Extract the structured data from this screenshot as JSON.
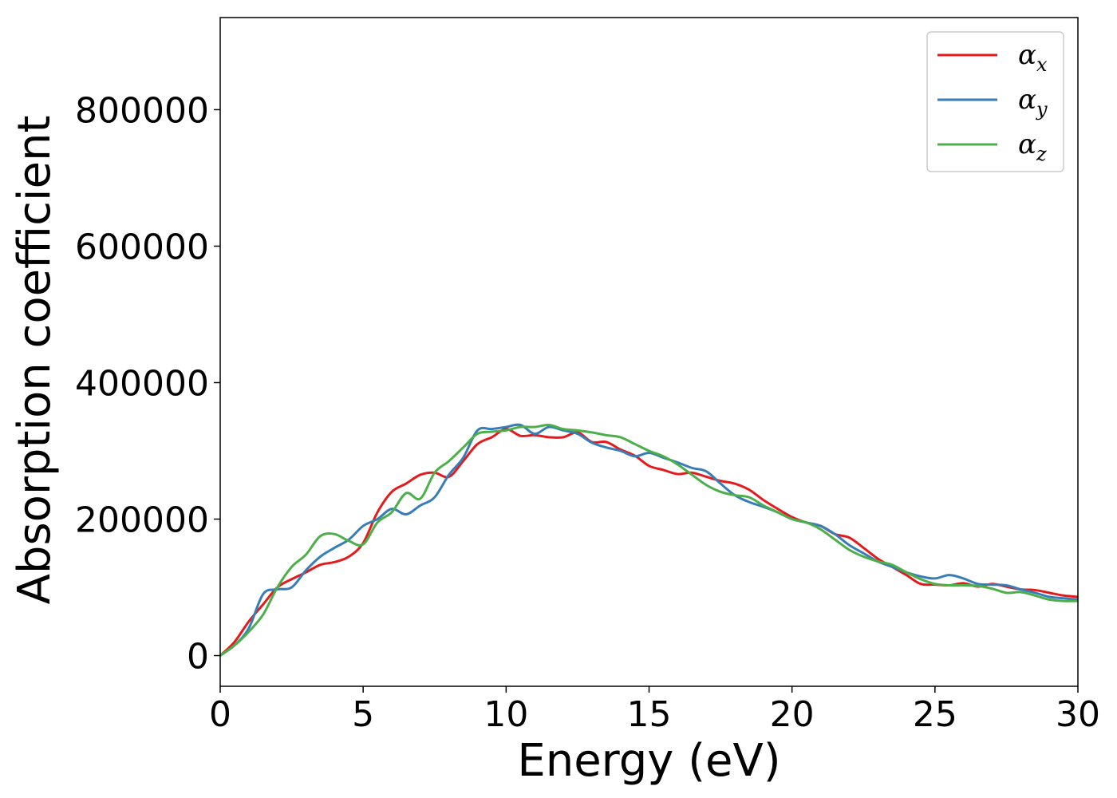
{
  "chart_data": {
    "type": "line",
    "xlabel": "Energy (eV)",
    "ylabel": "Absorption coefficient",
    "xlim": [
      0,
      30
    ],
    "ylim": [
      -45000,
      935000
    ],
    "xticks": [
      0,
      5,
      10,
      15,
      20,
      25,
      30
    ],
    "yticks": [
      0,
      200000,
      400000,
      600000,
      800000
    ],
    "grid": false,
    "legend_position": "top-right",
    "series": [
      {
        "name": "αx",
        "symbol": "α",
        "subscript": "x",
        "color": "#e41a1c",
        "x": [
          0,
          0.5,
          1.0,
          1.5,
          2.0,
          2.5,
          3.0,
          3.5,
          4.0,
          4.5,
          5.0,
          5.5,
          6.0,
          6.5,
          7.0,
          7.5,
          8.0,
          8.5,
          9.0,
          9.5,
          10.0,
          10.5,
          11.0,
          11.5,
          12.0,
          12.5,
          13.0,
          13.5,
          14.0,
          14.5,
          15.0,
          15.5,
          16.0,
          16.5,
          17.0,
          17.5,
          18.0,
          18.5,
          19.0,
          19.5,
          20.0,
          20.5,
          21.0,
          21.5,
          22.0,
          22.5,
          23.0,
          23.5,
          24.0,
          24.5,
          25.0,
          25.5,
          26.0,
          26.5,
          27.0,
          27.5,
          28.0,
          28.5,
          29.0,
          29.5,
          30.0
        ],
        "y": [
          0,
          20000,
          50000,
          75000,
          100000,
          112000,
          122000,
          133000,
          137000,
          145000,
          165000,
          210000,
          240000,
          252000,
          265000,
          268000,
          262000,
          285000,
          310000,
          320000,
          332000,
          322000,
          323000,
          320000,
          320000,
          327000,
          313000,
          313000,
          302000,
          293000,
          278000,
          272000,
          266000,
          268000,
          262000,
          256000,
          252000,
          243000,
          228000,
          215000,
          203000,
          195000,
          190000,
          178000,
          173000,
          158000,
          142000,
          130000,
          118000,
          105000,
          104000,
          103000,
          106000,
          101000,
          105000,
          101000,
          97000,
          96000,
          92000,
          88000,
          86000
        ]
      },
      {
        "name": "αy",
        "symbol": "α",
        "subscript": "y",
        "color": "#377eb8",
        "x": [
          0,
          0.5,
          1.0,
          1.5,
          2.0,
          2.5,
          3.0,
          3.5,
          4.0,
          4.5,
          5.0,
          5.5,
          6.0,
          6.5,
          7.0,
          7.5,
          8.0,
          8.5,
          9.0,
          9.5,
          10.0,
          10.5,
          11.0,
          11.5,
          12.0,
          12.5,
          13.0,
          13.5,
          14.0,
          14.5,
          15.0,
          15.5,
          16.0,
          16.5,
          17.0,
          17.5,
          18.0,
          18.5,
          19.0,
          19.5,
          20.0,
          20.5,
          21.0,
          21.5,
          22.0,
          22.5,
          23.0,
          23.5,
          24.0,
          24.5,
          25.0,
          25.5,
          26.0,
          26.5,
          27.0,
          27.5,
          28.0,
          28.5,
          29.0,
          29.5,
          30.0
        ],
        "y": [
          0,
          15000,
          40000,
          90000,
          97000,
          100000,
          125000,
          145000,
          158000,
          170000,
          190000,
          200000,
          215000,
          207000,
          220000,
          232000,
          265000,
          290000,
          330000,
          332000,
          335000,
          338000,
          325000,
          335000,
          330000,
          325000,
          312000,
          305000,
          300000,
          292000,
          297000,
          290000,
          283000,
          275000,
          270000,
          252000,
          235000,
          225000,
          218000,
          210000,
          200000,
          195000,
          190000,
          178000,
          162000,
          150000,
          138000,
          130000,
          122000,
          116000,
          113000,
          118000,
          113000,
          105000,
          104000,
          103000,
          97000,
          92000,
          86000,
          84000,
          82000
        ]
      },
      {
        "name": "αz",
        "symbol": "α",
        "subscript": "z",
        "color": "#4daf4a",
        "x": [
          0,
          0.5,
          1.0,
          1.5,
          2.0,
          2.5,
          3.0,
          3.5,
          4.0,
          4.5,
          5.0,
          5.5,
          6.0,
          6.5,
          7.0,
          7.5,
          8.0,
          8.5,
          9.0,
          9.5,
          10.0,
          10.5,
          11.0,
          11.5,
          12.0,
          12.5,
          13.0,
          13.5,
          14.0,
          14.5,
          15.0,
          15.5,
          16.0,
          16.5,
          17.0,
          17.5,
          18.0,
          18.5,
          19.0,
          19.5,
          20.0,
          20.5,
          21.0,
          21.5,
          22.0,
          22.5,
          23.0,
          23.5,
          24.0,
          24.5,
          25.0,
          25.5,
          26.0,
          26.5,
          27.0,
          27.5,
          28.0,
          28.5,
          29.0,
          29.5,
          30.0
        ],
        "y": [
          0,
          15000,
          35000,
          60000,
          100000,
          130000,
          148000,
          175000,
          178000,
          168000,
          163000,
          195000,
          210000,
          238000,
          230000,
          268000,
          285000,
          305000,
          325000,
          328000,
          330000,
          335000,
          335000,
          338000,
          332000,
          330000,
          327000,
          323000,
          320000,
          310000,
          300000,
          292000,
          280000,
          265000,
          250000,
          240000,
          235000,
          232000,
          220000,
          210000,
          200000,
          195000,
          185000,
          170000,
          155000,
          145000,
          138000,
          133000,
          122000,
          112000,
          105000,
          103000,
          103000,
          102000,
          98000,
          92000,
          93000,
          88000,
          82000,
          80000,
          80000
        ]
      }
    ]
  }
}
